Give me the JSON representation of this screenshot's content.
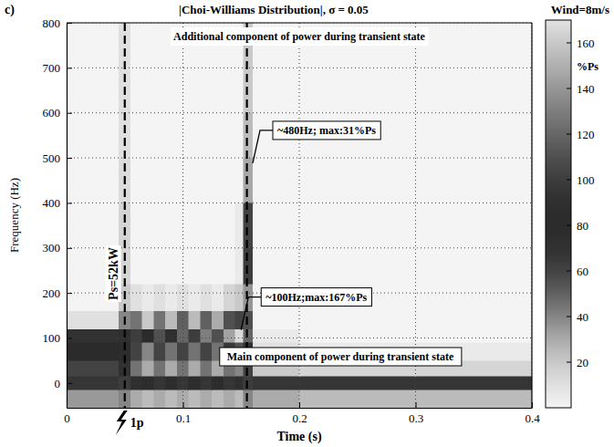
{
  "chart_data": {
    "type": "heatmap",
    "panel": "c)",
    "title": "|Choi-Williams Distribution|, σ = 0.05",
    "subtitle": "Wind=8m/s",
    "x_label": "Time (s)",
    "y_label": "Frequency (Hz)",
    "xlim": [
      0,
      0.4
    ],
    "ylim": [
      -55,
      800
    ],
    "xticks": [
      0,
      0.1,
      0.2,
      0.3,
      0.4
    ],
    "yticks": [
      0,
      100,
      200,
      300,
      400,
      500,
      600,
      700,
      800
    ],
    "grid": true,
    "x_edges": [
      0,
      0.045,
      0.055,
      0.065,
      0.075,
      0.085,
      0.095,
      0.105,
      0.115,
      0.125,
      0.135,
      0.145,
      0.152,
      0.16,
      0.2,
      0.3,
      0.4
    ],
    "y_edges": [
      -55,
      -15,
      15,
      50,
      90,
      120,
      160,
      220,
      300,
      400,
      500,
      600,
      800
    ],
    "z": [
      [
        35,
        40,
        30,
        25,
        30,
        25,
        30,
        25,
        30,
        25,
        30,
        25,
        40,
        30,
        25,
        25
      ],
      [
        95,
        100,
        90,
        85,
        95,
        85,
        95,
        85,
        95,
        85,
        95,
        90,
        100,
        95,
        95,
        95
      ],
      [
        60,
        70,
        45,
        30,
        45,
        30,
        45,
        30,
        45,
        30,
        45,
        40,
        60,
        20,
        15,
        15
      ],
      [
        80,
        85,
        60,
        40,
        60,
        45,
        60,
        45,
        60,
        45,
        65,
        55,
        70,
        10,
        5,
        5
      ],
      [
        70,
        90,
        100,
        80,
        110,
        90,
        120,
        100,
        130,
        110,
        145,
        167,
        120,
        5,
        0,
        0
      ],
      [
        10,
        40,
        45,
        20,
        45,
        25,
        50,
        25,
        50,
        30,
        55,
        60,
        110,
        0,
        0,
        0
      ],
      [
        0,
        20,
        10,
        5,
        10,
        5,
        10,
        5,
        10,
        5,
        15,
        20,
        140,
        0,
        0,
        0
      ],
      [
        0,
        15,
        0,
        0,
        0,
        0,
        0,
        0,
        0,
        0,
        0,
        5,
        100,
        0,
        0,
        0
      ],
      [
        0,
        15,
        0,
        0,
        0,
        0,
        0,
        0,
        0,
        0,
        0,
        5,
        60,
        0,
        0,
        0
      ],
      [
        0,
        12,
        0,
        0,
        0,
        0,
        0,
        0,
        0,
        0,
        0,
        0,
        31,
        0,
        0,
        0
      ],
      [
        0,
        10,
        0,
        0,
        0,
        0,
        0,
        0,
        0,
        0,
        0,
        0,
        25,
        0,
        0,
        0
      ],
      [
        0,
        10,
        0,
        0,
        0,
        0,
        0,
        0,
        0,
        0,
        0,
        0,
        20,
        0,
        0,
        0
      ]
    ],
    "colorbar": {
      "range": [
        0,
        170
      ],
      "ticks": [
        20,
        40,
        60,
        80,
        100,
        120,
        140,
        160
      ],
      "label": "%Ps"
    },
    "markers": [
      {
        "x": 0.05,
        "label": "1p",
        "text": "Ps=52kW"
      },
      {
        "x": 0.155
      }
    ],
    "annotations": [
      {
        "text": "Additional component of power during transient state"
      },
      {
        "text": "~480Hz; max:31%Ps",
        "x": 0.16,
        "y": 480
      },
      {
        "text": "~100Hz;max:167%Ps",
        "x": 0.15,
        "y": 110
      },
      {
        "text": "Main component of power during transient state"
      }
    ]
  }
}
